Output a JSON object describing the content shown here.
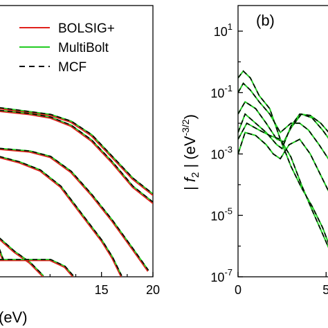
{
  "colors": {
    "bolsig": "#e0201b",
    "multibolt": "#22cc22",
    "mcf": "#000000"
  },
  "chart_data": [
    {
      "panel": "a",
      "type": "line",
      "xlabel": "(eV)",
      "xticks": [
        "15",
        "20"
      ],
      "xlim": [
        5,
        20
      ],
      "ylim": [
        0,
        1
      ],
      "legend": {
        "placement": "top-right",
        "entries": [
          {
            "label": "BOLSIG+",
            "style": "solid",
            "color": "#e0201b"
          },
          {
            "label": "MultiBolt",
            "style": "solid",
            "color": "#22cc22"
          },
          {
            "label": "MCF",
            "style": "dashed",
            "color": "#000000"
          }
        ]
      },
      "series": [
        {
          "x": [
            5,
            8,
            10,
            12,
            14,
            16,
            18,
            20
          ],
          "y": [
            0.62,
            0.605,
            0.595,
            0.57,
            0.52,
            0.44,
            0.36,
            0.3
          ]
        },
        {
          "x": [
            5,
            8,
            10,
            12,
            14,
            16,
            18,
            20
          ],
          "y": [
            0.61,
            0.598,
            0.585,
            0.555,
            0.5,
            0.42,
            0.33,
            0.27
          ]
        },
        {
          "x": [
            5,
            8,
            10,
            12,
            14,
            16,
            18,
            19.5
          ],
          "y": [
            0.47,
            0.46,
            0.44,
            0.385,
            0.3,
            0.205,
            0.1,
            0.02
          ]
        },
        {
          "x": [
            5,
            7,
            9,
            11,
            13,
            15,
            16,
            16.9
          ],
          "y": [
            0.44,
            0.42,
            0.39,
            0.33,
            0.23,
            0.13,
            0.07,
            0.0
          ]
        },
        {
          "x": [
            5,
            6.5,
            8,
            9.3
          ],
          "y": [
            0.14,
            0.09,
            0.05,
            0.0
          ]
        },
        {
          "x": [
            5,
            5.4
          ],
          "y": [
            0.1,
            0.06
          ]
        },
        {
          "x": [
            5,
            10,
            11.4,
            12.2
          ],
          "y": [
            0.06,
            0.06,
            0.035,
            0.0
          ]
        }
      ]
    },
    {
      "panel": "b",
      "type": "line",
      "panel_label": "(b)",
      "ylabel_left": "| ",
      "ylabel_var": "f",
      "ylabel_sub": "2",
      "ylabel_right": " | (eV",
      "ylabel_sup": "-3/2",
      "ylabel_close": ")",
      "yscale": "log",
      "ylim": [
        1e-07,
        100
      ],
      "yticks": [
        {
          "base": "10",
          "exp": "1"
        },
        {
          "base": "10",
          "exp": "-1"
        },
        {
          "base": "10",
          "exp": "-3"
        },
        {
          "base": "10",
          "exp": "-5"
        },
        {
          "base": "10",
          "exp": "-7"
        }
      ],
      "xticks": [
        "0",
        "5"
      ],
      "xlim": [
        0,
        5.5
      ],
      "series": [
        {
          "x": [
            0,
            0.3,
            0.7,
            1.2,
            1.8,
            2.4,
            3.0,
            3.6,
            4.2,
            4.8,
            5.3
          ],
          "y": [
            0.3,
            0.5,
            0.3,
            0.08,
            0.03,
            0.003,
            0.0004,
            8e-05,
            2e-05,
            4e-06,
            7e-07
          ]
        },
        {
          "x": [
            0,
            0.3,
            0.7,
            1.2,
            1.8,
            2.4,
            3.0,
            3.5,
            4.0,
            4.6,
            5.2
          ],
          "y": [
            0.1,
            0.2,
            0.12,
            0.05,
            0.02,
            0.005,
            0.01,
            0.01,
            0.006,
            0.002,
            0.0006
          ]
        },
        {
          "x": [
            0,
            0.4,
            1.0,
            1.6,
            2.2,
            2.6,
            3.0,
            3.6,
            4.2,
            4.8,
            5.4
          ],
          "y": [
            0.02,
            0.05,
            0.03,
            0.01,
            0.003,
            0.0025,
            0.007,
            0.02,
            0.015,
            0.006,
            0.002
          ]
        },
        {
          "x": [
            0,
            0.4,
            1.0,
            1.6,
            2.2,
            2.5,
            3.0,
            3.5,
            4.1,
            4.7,
            5.3
          ],
          "y": [
            0.005,
            0.02,
            0.01,
            0.005,
            0.002,
            0.0015,
            0.008,
            0.02,
            0.018,
            0.01,
            0.004
          ]
        },
        {
          "x": [
            0,
            0.4,
            1.0,
            1.6,
            2.0,
            2.4,
            2.9,
            3.5,
            4.1,
            4.7,
            5.3
          ],
          "y": [
            0.001,
            0.005,
            0.004,
            0.002,
            0.001,
            0.0007,
            0.002,
            0.003,
            0.001,
            0.0002,
            4e-05
          ]
        },
        {
          "x": [
            0,
            0.5,
            1.2,
            1.8,
            2.4,
            3.0,
            3.6,
            4.2,
            4.8,
            5.4
          ],
          "y": [
            0.003,
            0.01,
            0.006,
            0.004,
            0.003,
            0.0008,
            0.0001,
            1.5e-05,
            2.5e-06,
            4e-07
          ]
        }
      ]
    }
  ]
}
